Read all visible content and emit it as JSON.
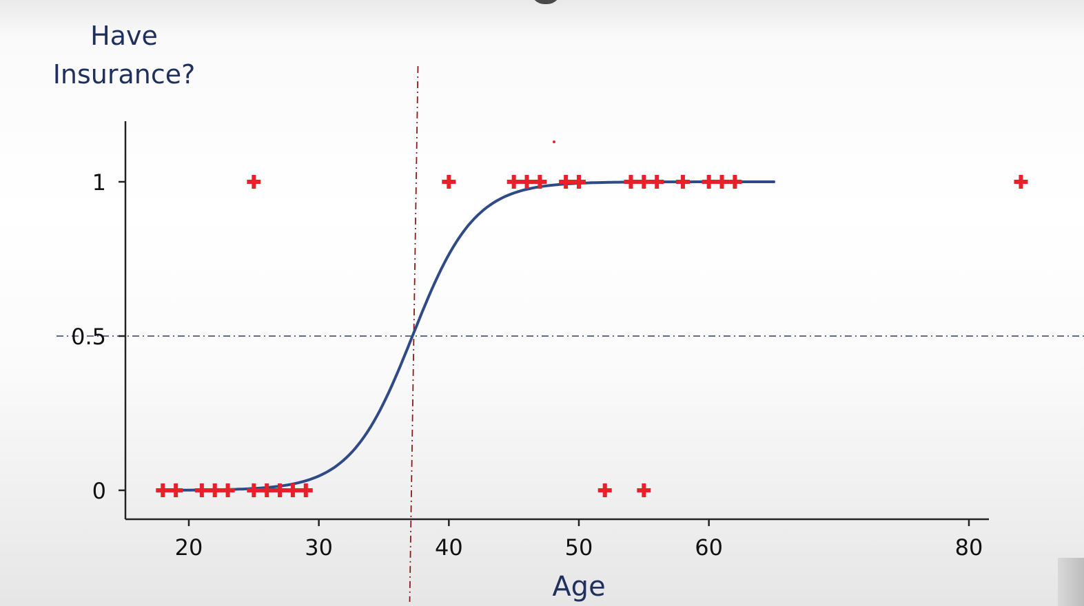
{
  "chart_data": {
    "type": "scatter",
    "ylabel": "Have\nInsurance?",
    "xlabel": "Age",
    "xlim": [
      16,
      81
    ],
    "ylim": [
      0,
      1.2
    ],
    "x_ticks": [
      20,
      30,
      40,
      50,
      60,
      80
    ],
    "y_ticks": [
      0,
      0.5,
      1
    ],
    "points": [
      {
        "x": 18,
        "y": 0
      },
      {
        "x": 19,
        "y": 0
      },
      {
        "x": 21,
        "y": 0
      },
      {
        "x": 22,
        "y": 0
      },
      {
        "x": 23,
        "y": 0
      },
      {
        "x": 25,
        "y": 0
      },
      {
        "x": 26,
        "y": 0
      },
      {
        "x": 27,
        "y": 0
      },
      {
        "x": 28,
        "y": 0
      },
      {
        "x": 29,
        "y": 0
      },
      {
        "x": 52,
        "y": 0
      },
      {
        "x": 55,
        "y": 0
      },
      {
        "x": 25,
        "y": 1
      },
      {
        "x": 40,
        "y": 1
      },
      {
        "x": 45,
        "y": 1
      },
      {
        "x": 46,
        "y": 1
      },
      {
        "x": 47,
        "y": 1
      },
      {
        "x": 49,
        "y": 1
      },
      {
        "x": 50,
        "y": 1
      },
      {
        "x": 54,
        "y": 1
      },
      {
        "x": 55,
        "y": 1
      },
      {
        "x": 56,
        "y": 1
      },
      {
        "x": 58,
        "y": 1
      },
      {
        "x": 60,
        "y": 1
      },
      {
        "x": 61,
        "y": 1
      },
      {
        "x": 62,
        "y": 1
      },
      {
        "x": 84,
        "y": 1
      }
    ],
    "curve": {
      "type": "logistic",
      "midpoint": 37.2,
      "steepness": 0.42,
      "x_range": [
        18,
        65
      ],
      "color": "#2f4a86"
    },
    "threshold_line": {
      "y": 0.5,
      "color": "#2f3b66"
    },
    "decision_line": {
      "x": 37.2,
      "color": "#8b1a1a"
    },
    "marker_color": "#e8202a",
    "grid": false,
    "legend": "none"
  }
}
